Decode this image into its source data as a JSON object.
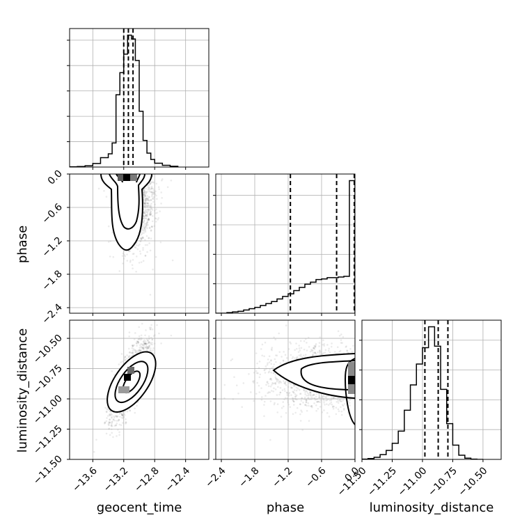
{
  "chart_data": {
    "type": "corner",
    "parameters": [
      "geocent_time",
      "phase",
      "luminosity_distance"
    ],
    "axis_labels": {
      "geocent_time": "geocent_time",
      "phase": "phase",
      "luminosity_distance": "luminosity_distance"
    },
    "ranges": {
      "geocent_time": [
        -13.9,
        -12.1
      ],
      "phase": [
        -2.5,
        0.0
      ],
      "luminosity_distance": [
        -11.5,
        -10.35
      ]
    },
    "ticks": {
      "geocent_time": [
        "−13.6",
        "−13.2",
        "−12.8",
        "−12.4"
      ],
      "phase_x": [
        "−2.4",
        "−1.8",
        "−1.2",
        "−0.6",
        "0.0"
      ],
      "phase_y": [
        "0.0",
        "−0.6",
        "−1.2",
        "−1.8",
        "−2.4"
      ],
      "luminosity_distance_x": [
        "−11.50",
        "−11.25",
        "−11.00",
        "−10.75",
        "−10.50"
      ],
      "luminosity_distance_y": [
        "−10.50",
        "−10.75",
        "−11.00",
        "−11.25",
        "−11.50"
      ]
    },
    "tick_values": {
      "geocent_time": [
        -13.6,
        -13.2,
        -12.8,
        -12.4
      ],
      "phase_x": [
        -2.4,
        -1.8,
        -1.2,
        -0.6,
        0.0
      ],
      "phase_y": [
        0.0,
        -0.6,
        -1.2,
        -1.8,
        -2.4
      ],
      "luminosity_distance_x": [
        -11.5,
        -11.25,
        -11.0,
        -10.75,
        -10.5
      ],
      "luminosity_distance_y": [
        -10.5,
        -10.75,
        -11.0,
        -11.25,
        -11.5
      ]
    },
    "histograms": {
      "geocent_time": {
        "edges": [
          -13.9,
          -13.8,
          -13.7,
          -13.6,
          -13.5,
          -13.4,
          -13.35,
          -13.3,
          -13.25,
          -13.2,
          -13.15,
          -13.1,
          -13.05,
          -13.0,
          -12.95,
          -12.9,
          -12.85,
          -12.8,
          -12.7,
          -12.6,
          -12.5
        ],
        "counts": [
          1,
          2,
          5,
          14,
          37,
          52,
          95,
          285,
          372,
          445,
          520,
          505,
          420,
          220,
          105,
          55,
          30,
          15,
          7,
          3
        ]
      },
      "phase": {
        "edges": [
          -2.5,
          -2.4,
          -2.3,
          -2.2,
          -2.1,
          -2.0,
          -1.9,
          -1.8,
          -1.7,
          -1.6,
          -1.5,
          -1.4,
          -1.3,
          -1.2,
          -1.1,
          -1.0,
          -0.9,
          -0.8,
          -0.7,
          -0.6,
          -0.5,
          -0.4,
          -0.3,
          -0.2,
          -0.1,
          0.0
        ],
        "counts": [
          0,
          0,
          1,
          2,
          3,
          5,
          7,
          9,
          12,
          15,
          18,
          22,
          26,
          30,
          35,
          40,
          45,
          48,
          52,
          53,
          55,
          55,
          56,
          57,
          205
        ]
      },
      "luminosity_distance": {
        "edges": [
          -11.5,
          -11.45,
          -11.4,
          -11.35,
          -11.3,
          -11.25,
          -11.2,
          -11.15,
          -11.1,
          -11.05,
          -11.0,
          -10.95,
          -10.9,
          -10.85,
          -10.8,
          -10.75,
          -10.7,
          -10.65,
          -10.6,
          -10.55,
          -10.5
        ],
        "counts": [
          1,
          3,
          7,
          16,
          30,
          54,
          95,
          165,
          250,
          320,
          375,
          445,
          380,
          235,
          120,
          48,
          14,
          4,
          1,
          0
        ]
      }
    },
    "quantiles": {
      "geocent_time": [
        -13.2,
        -13.14,
        -13.08
      ],
      "phase": [
        -1.16,
        -0.33,
        -0.01
      ],
      "luminosity_distance": [
        -10.98,
        -10.87,
        -10.79
      ]
    },
    "scatter_2d": {
      "geocent_time_vs_phase": {
        "mean": [
          -13.05,
          -0.45
        ],
        "sd": [
          0.13,
          0.45
        ]
      },
      "geocent_time_vs_luminosity_distance": {
        "mean": [
          -13.12,
          -10.85
        ],
        "sd": [
          0.13,
          0.17
        ]
      },
      "phase_vs_luminosity_distance": {
        "mean": [
          -0.55,
          -10.83
        ],
        "sd": [
          0.55,
          0.13
        ]
      }
    },
    "grid": true
  }
}
